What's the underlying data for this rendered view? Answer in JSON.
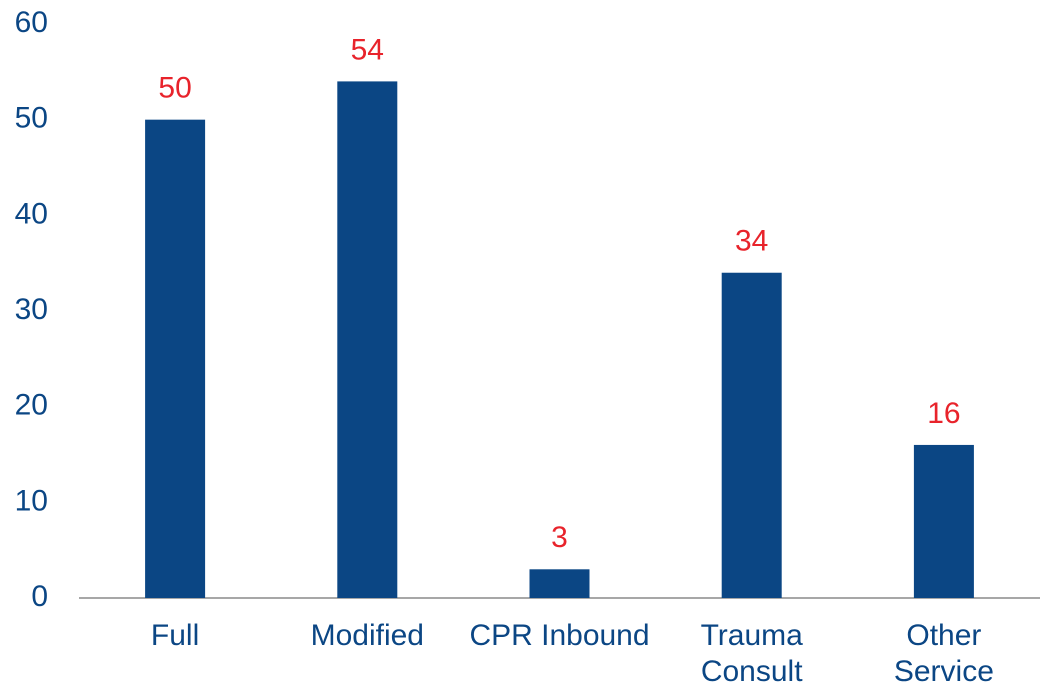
{
  "chart_data": {
    "type": "bar",
    "categories": [
      "Full",
      "Modified",
      "CPR Inbound",
      "Trauma Consult",
      "Other Service"
    ],
    "values": [
      50,
      54,
      3,
      34,
      16
    ],
    "color": "#0b4684",
    "label_color": "#e8232b",
    "ylim": [
      0,
      60
    ],
    "yticks": [
      0,
      10,
      20,
      30,
      40,
      50,
      60
    ],
    "grid": false
  }
}
